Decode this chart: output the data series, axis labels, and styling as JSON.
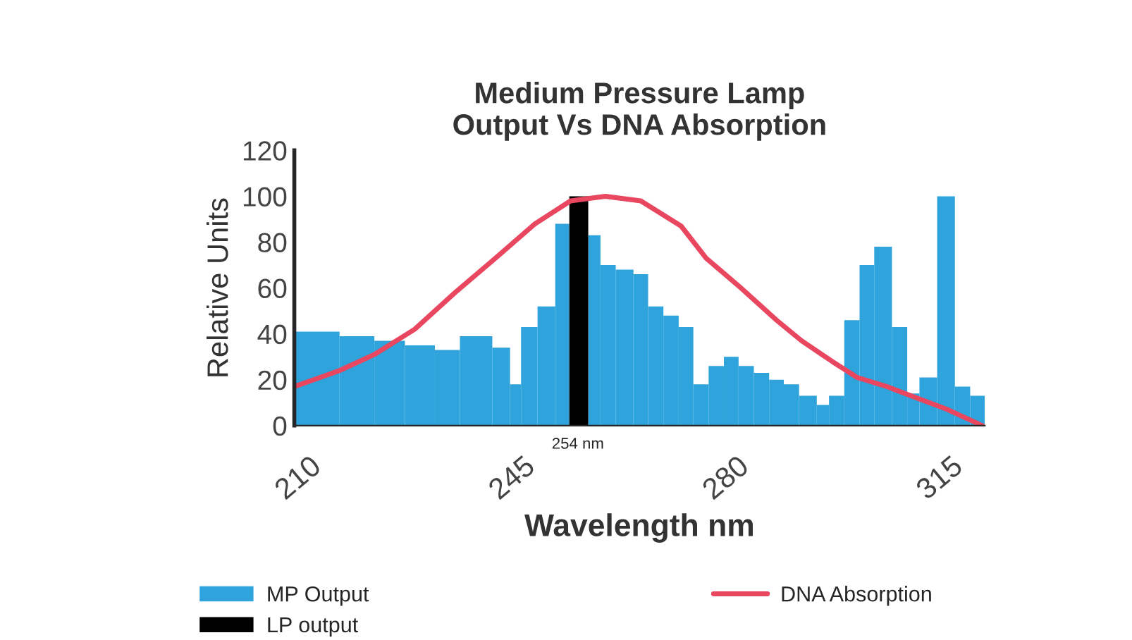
{
  "chart_data": {
    "type": "histogram",
    "title": "Medium Pressure Lamp\nOutput Vs DNA Absorption",
    "xlabel": "Wavelength nm",
    "ylabel": "Relative Units",
    "xlim": [
      207.6,
      320.6
    ],
    "xticks": [
      210,
      245,
      280,
      315
    ],
    "ylim": [
      0,
      120
    ],
    "yticks": [
      0,
      20,
      40,
      60,
      80,
      100,
      120
    ],
    "grid": false,
    "legend": "bottom",
    "series": [
      {
        "name": "MP Output",
        "color": "#2ea3dc",
        "bins": [
          207.6,
          215.0,
          220.7,
          225.7,
          230.6,
          234.7,
          240.0,
          242.9,
          244.7,
          247.4,
          250.3,
          252.6,
          255.7,
          257.7,
          260.2,
          263.1,
          265.5,
          268.0,
          270.5,
          272.9,
          275.4,
          277.9,
          280.3,
          282.8,
          285.3,
          287.7,
          290.2,
          293.1,
          295.1,
          297.6,
          300.1,
          302.5,
          305.4,
          307.9,
          309.9,
          312.8,
          315.7,
          318.2,
          320.6
        ],
        "values": [
          41,
          39,
          37,
          35,
          33,
          39,
          34,
          18,
          43,
          52,
          88,
          null,
          83,
          70,
          68,
          66,
          52,
          48,
          43,
          18,
          26,
          30,
          26,
          23,
          20,
          18,
          13,
          9,
          13,
          46,
          70,
          78,
          43,
          14,
          21,
          100,
          17,
          13
        ]
      },
      {
        "name": "LP output",
        "color": "#000000",
        "bins": [
          252.6,
          255.7
        ],
        "values": [
          100
        ]
      },
      {
        "name": "DNA Absorption",
        "type": "line",
        "color": "#e8475f",
        "x": [
          207.6,
          215,
          220.7,
          227.3,
          233.9,
          240.5,
          247,
          252.8,
          258.5,
          264.3,
          270.9,
          275,
          280.7,
          286.5,
          290.6,
          295.6,
          299.7,
          304.6,
          309.5,
          314.5,
          320.2
        ],
        "values": [
          17,
          24,
          31,
          42,
          58,
          73,
          88,
          98,
          100,
          98,
          87,
          73,
          60,
          46,
          37,
          28,
          21,
          17,
          12,
          7,
          0
        ]
      }
    ],
    "annotations": [
      {
        "text": "254 nm",
        "x": 254,
        "y": 0
      }
    ]
  }
}
